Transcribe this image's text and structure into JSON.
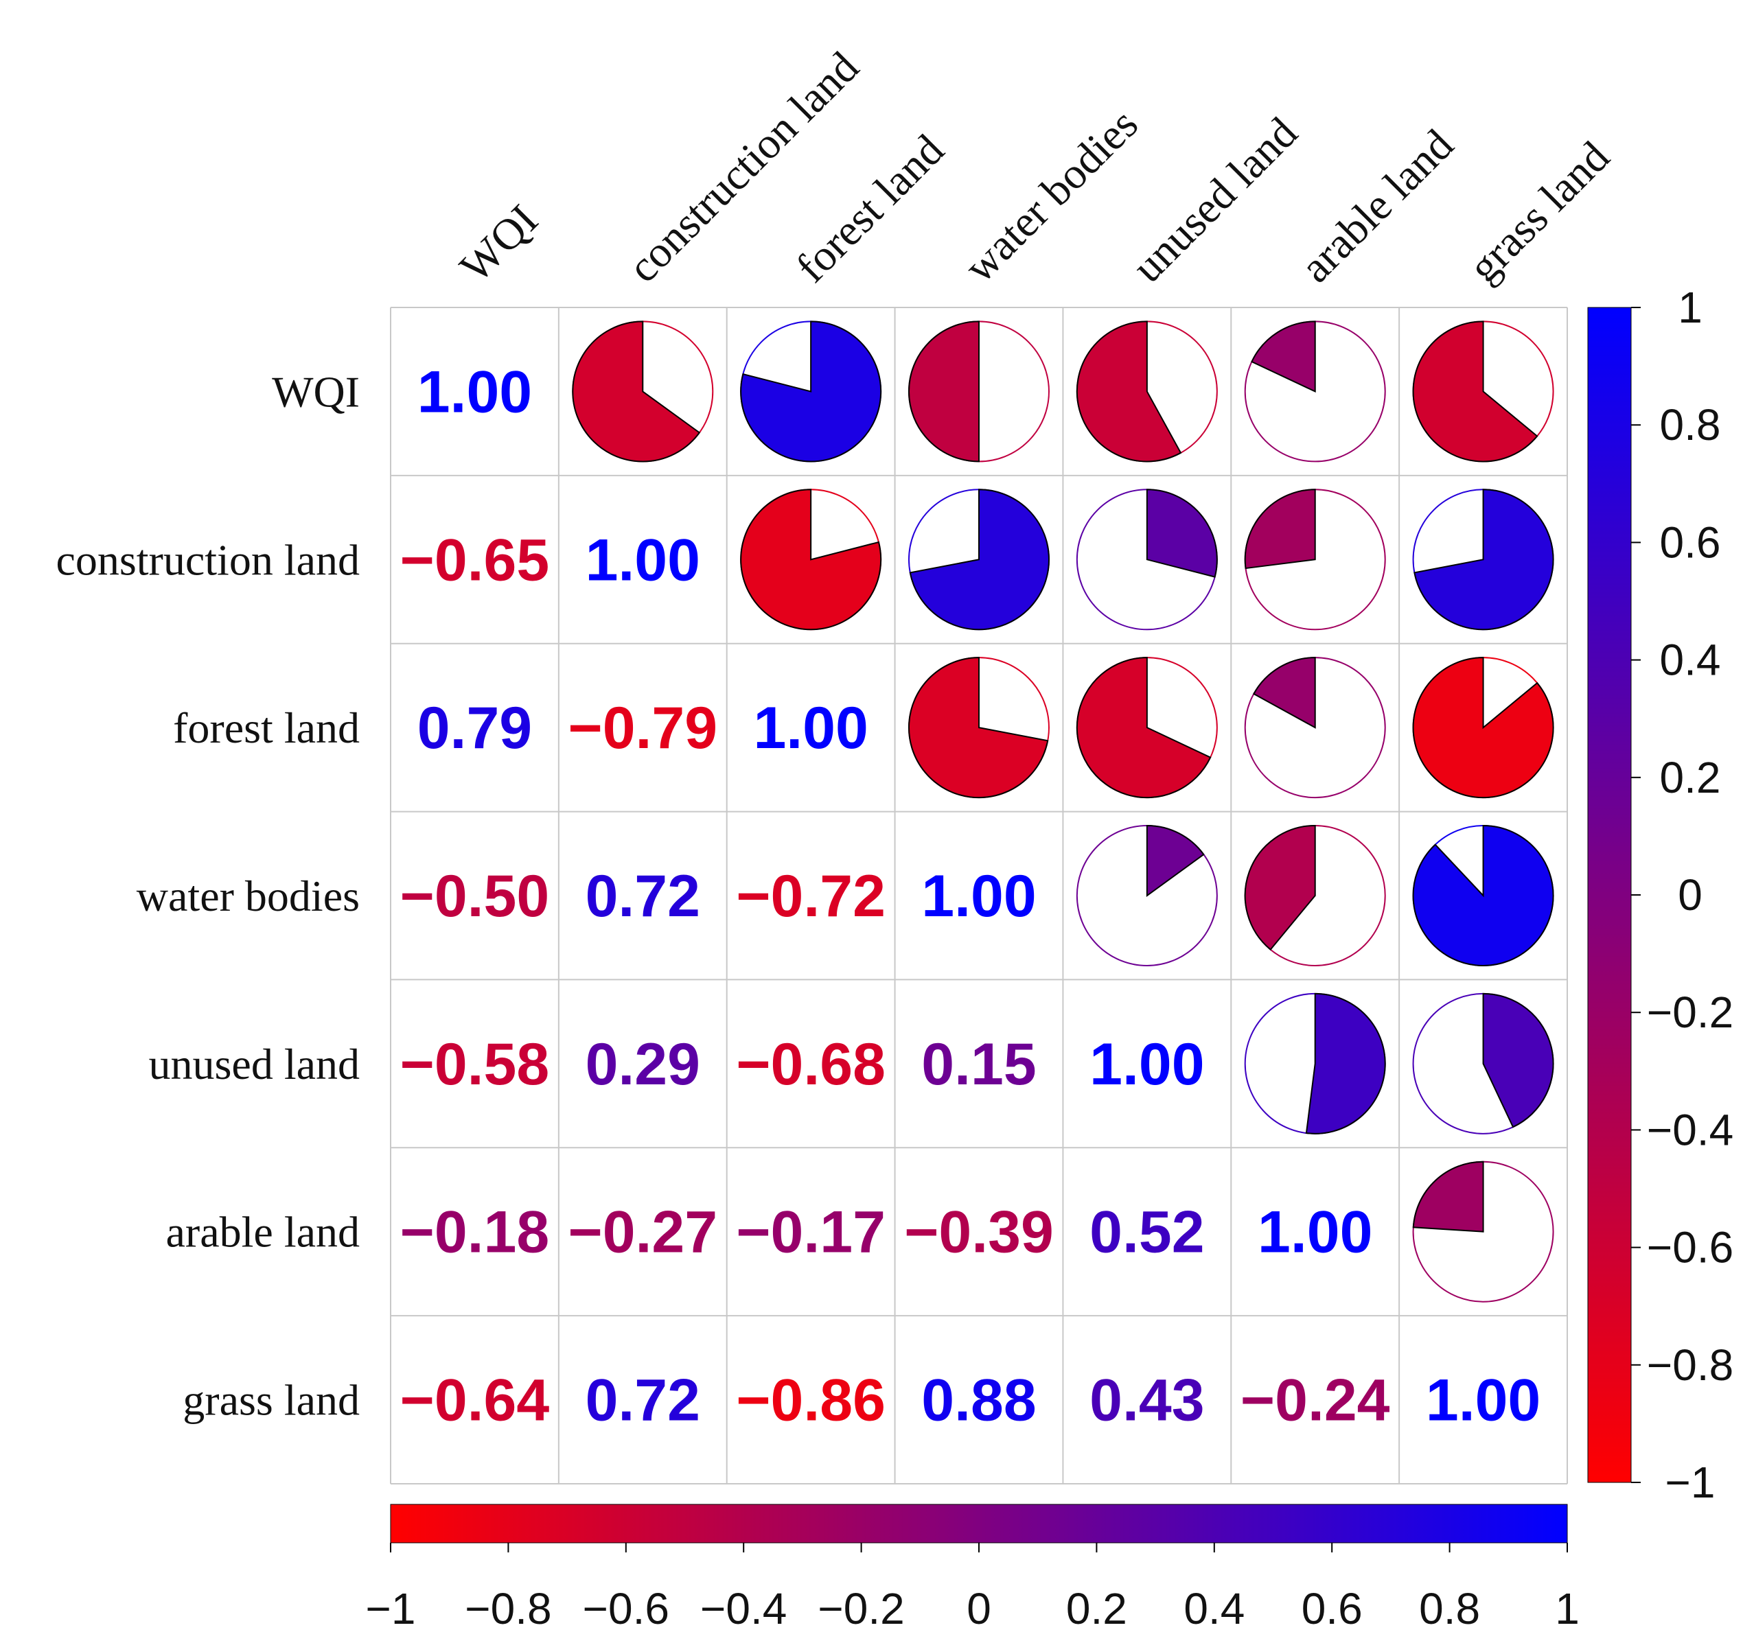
{
  "chart_data": {
    "type": "heatmap",
    "title": "",
    "variables": [
      "WQI",
      "construction land",
      "forest land",
      "water bodies",
      "unused land",
      "arable land",
      "grass land"
    ],
    "matrix": [
      [
        1.0,
        -0.65,
        0.79,
        -0.5,
        -0.58,
        -0.18,
        -0.64
      ],
      [
        -0.65,
        1.0,
        -0.79,
        0.72,
        0.29,
        -0.27,
        0.72
      ],
      [
        0.79,
        -0.79,
        1.0,
        -0.72,
        -0.68,
        -0.17,
        -0.86
      ],
      [
        -0.5,
        0.72,
        -0.72,
        1.0,
        0.15,
        -0.39,
        0.88
      ],
      [
        -0.58,
        0.29,
        -0.68,
        0.15,
        1.0,
        0.52,
        0.43
      ],
      [
        -0.18,
        -0.27,
        -0.17,
        -0.39,
        0.52,
        1.0,
        -0.24
      ],
      [
        -0.64,
        0.72,
        -0.86,
        0.88,
        0.43,
        -0.24,
        1.0
      ]
    ],
    "display_values": [
      [
        "1.00",
        "-0.65",
        "0.79",
        "-0.50",
        "-0.58",
        "-0.18",
        "-0.64"
      ],
      [
        "-0.65",
        "1.00",
        "-0.79",
        "0.72",
        "0.29",
        "-0.27",
        "0.72"
      ],
      [
        "0.79",
        "-0.79",
        "1.00",
        "-0.72",
        "-0.68",
        "-0.17",
        "-0.86"
      ],
      [
        "-0.50",
        "0.72",
        "-0.72",
        "1.00",
        "0.15",
        "-0.39",
        "0.88"
      ],
      [
        "-0.58",
        "0.29",
        "-0.68",
        "0.15",
        "1.00",
        "0.52",
        "0.43"
      ],
      [
        "-0.18",
        "-0.27",
        "-0.17",
        "-0.39",
        "0.52",
        "1.00",
        "-0.24"
      ],
      [
        "-0.64",
        "0.72",
        "-0.86",
        "0.88",
        "0.43",
        "-0.24",
        "1.00"
      ]
    ],
    "lower_triangle": "number",
    "upper_triangle": "pie",
    "color_scale": {
      "min": -1,
      "mid": 0,
      "max": 1,
      "low_color": "#ff0000",
      "mid_color": "#800080",
      "high_color": "#0000ff"
    },
    "colorbar_vertical_ticks": [
      "1",
      "0.8",
      "0.6",
      "0.4",
      "0.2",
      "0",
      "−0.2",
      "−0.4",
      "−0.6",
      "−0.8",
      "−1"
    ],
    "colorbar_horizontal_ticks": [
      "−1",
      "−0.8",
      "−0.6",
      "−0.4",
      "−0.2",
      "0",
      "0.2",
      "0.4",
      "0.6",
      "0.8",
      "1"
    ],
    "grid": true
  }
}
